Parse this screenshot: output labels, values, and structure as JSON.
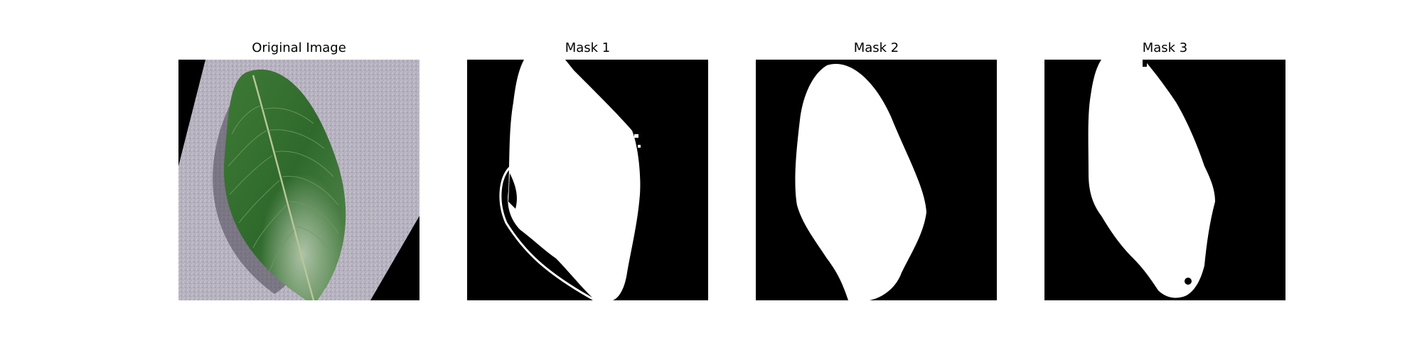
{
  "figure": {
    "background": "#ffffff",
    "panels": [
      {
        "title": "Original Image",
        "kind": "photo",
        "subject": "green leaf"
      },
      {
        "title": "Mask 1",
        "kind": "binary-mask",
        "foreground_color": "#ffffff",
        "background_color": "#000000"
      },
      {
        "title": "Mask 2",
        "kind": "binary-mask",
        "foreground_color": "#ffffff",
        "background_color": "#000000"
      },
      {
        "title": "Mask 3",
        "kind": "binary-mask",
        "foreground_color": "#ffffff",
        "background_color": "#000000"
      }
    ]
  }
}
